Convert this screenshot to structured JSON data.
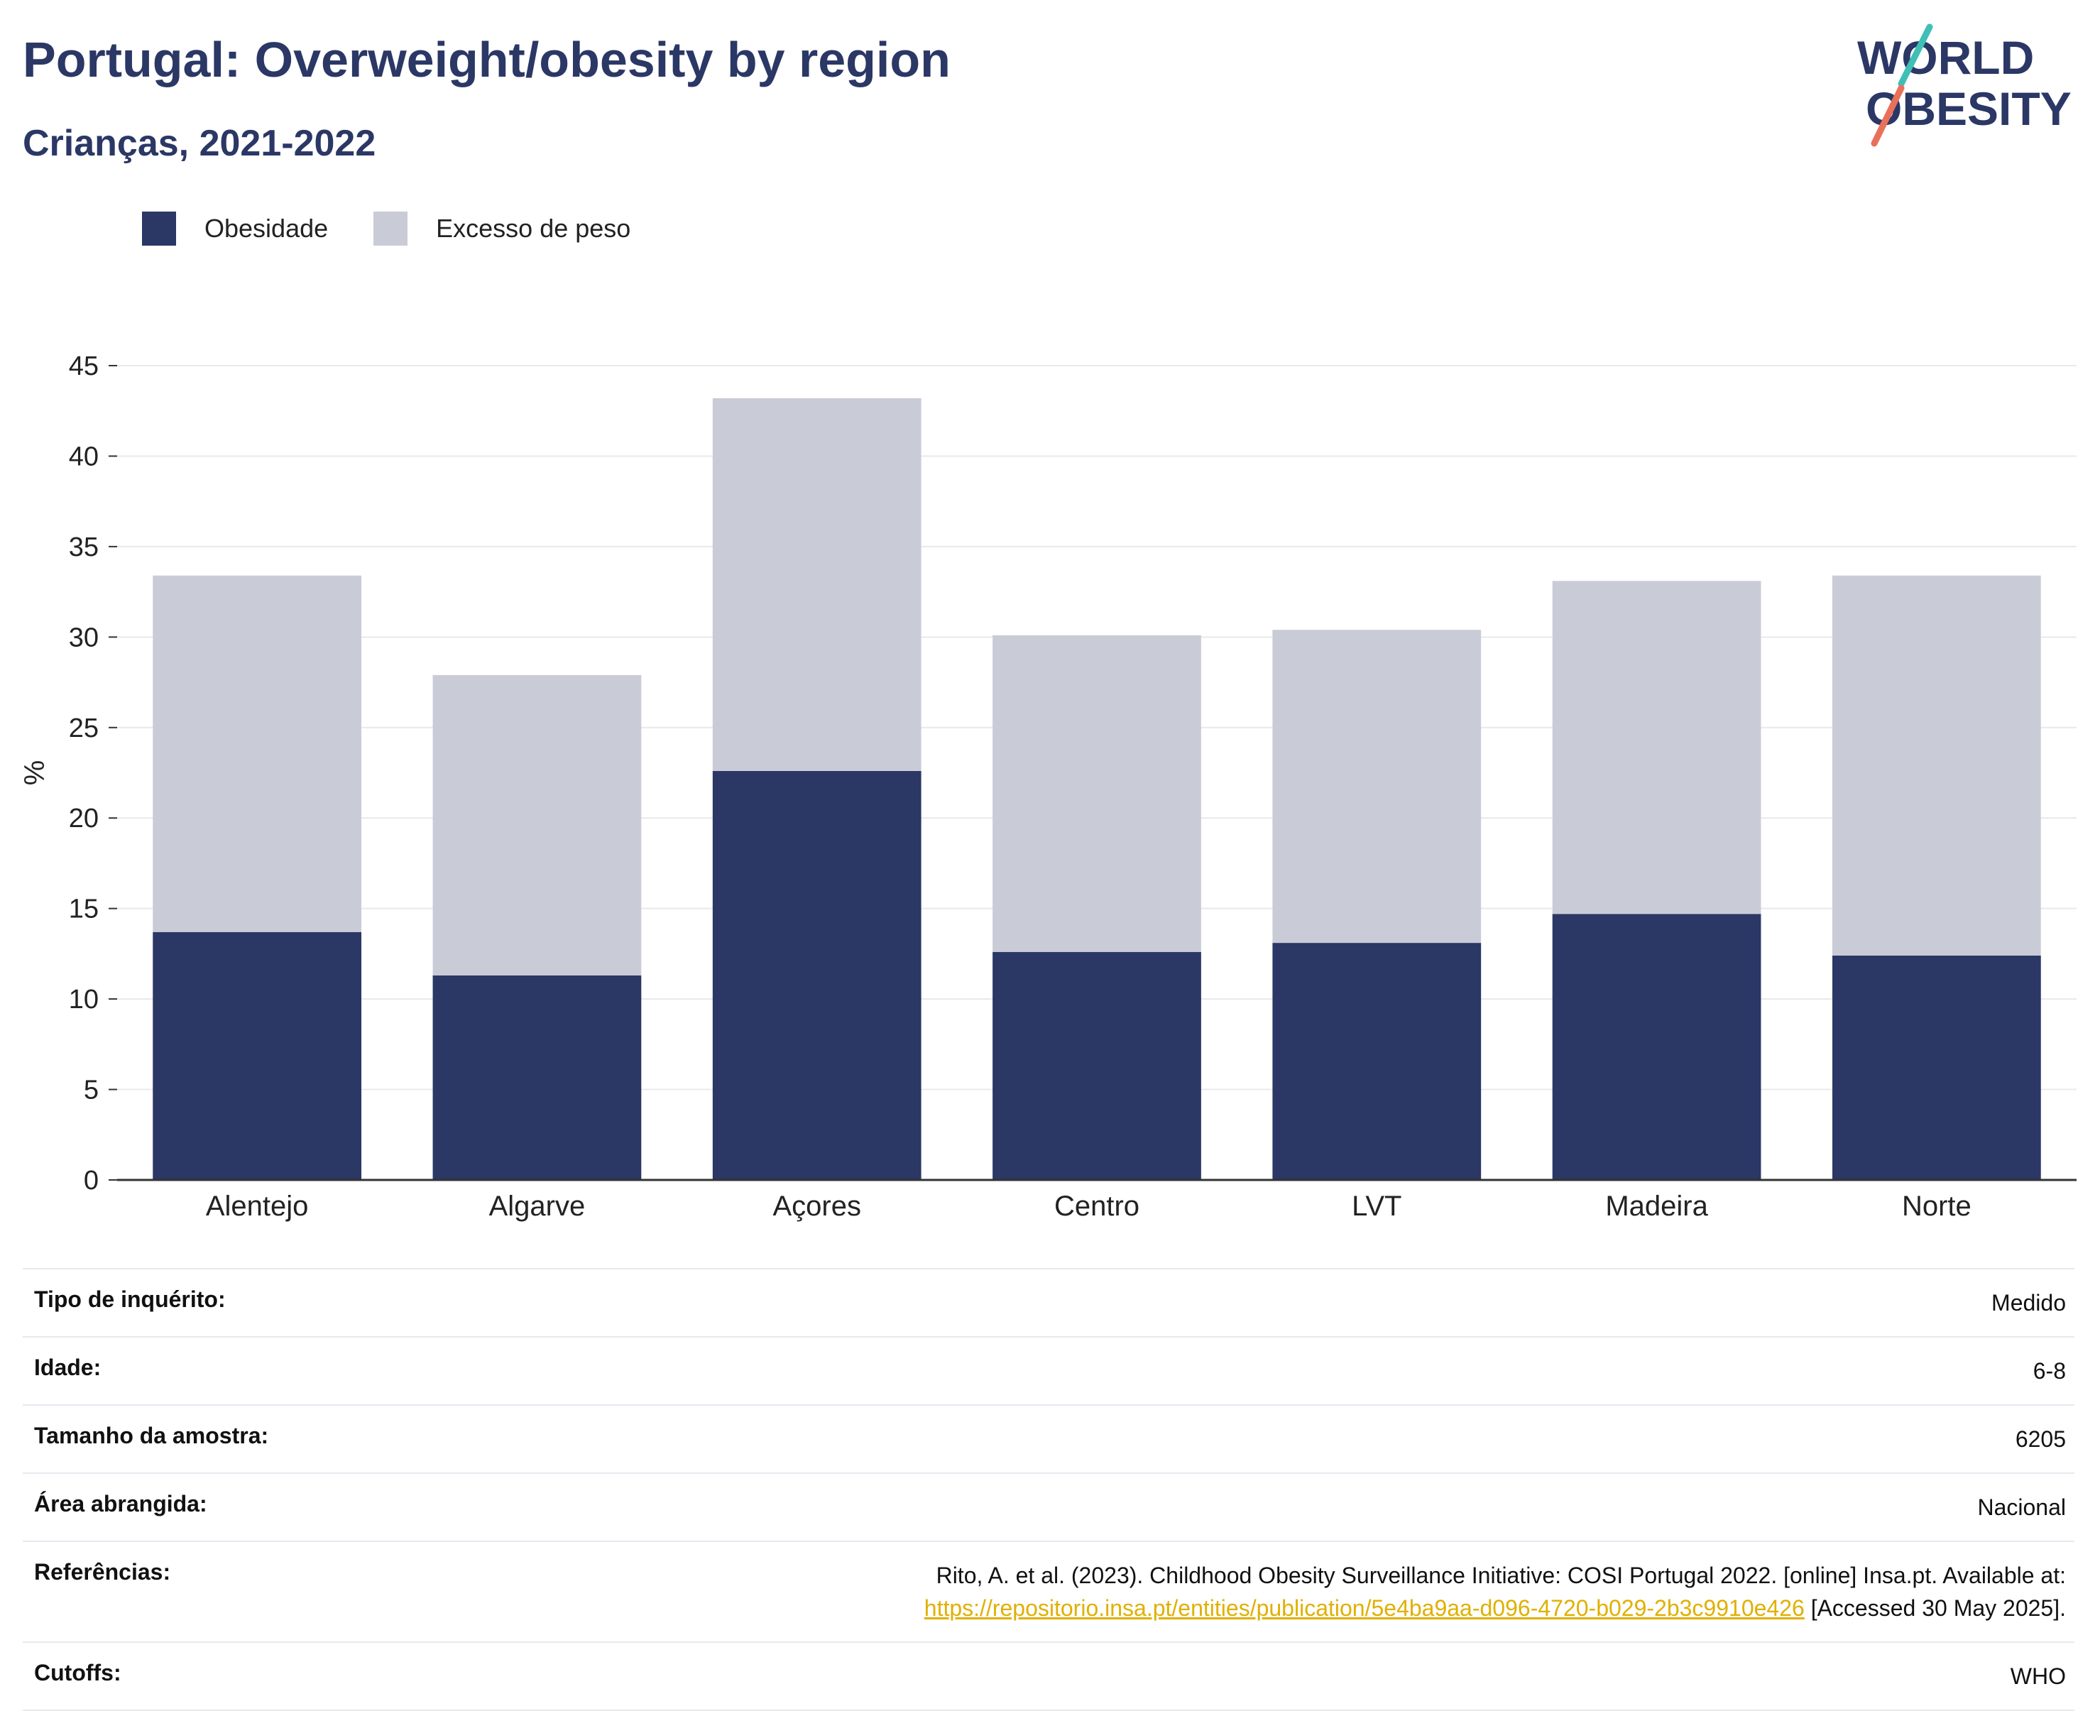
{
  "title": "Portugal: Overweight/obesity by region",
  "subtitle": "Crianças, 2021-2022",
  "logo": {
    "line1": "WORLD",
    "line2": "OBESITY"
  },
  "legend": [
    {
      "label": "Obesidade",
      "color": "#2b3765"
    },
    {
      "label": "Excesso de peso",
      "color": "#c9ccd7"
    }
  ],
  "chart_data": {
    "type": "bar",
    "stacked": true,
    "title": "",
    "xlabel": "",
    "ylabel": "%",
    "ylim": [
      0,
      45
    ],
    "yticks": [
      0,
      5,
      10,
      15,
      20,
      25,
      30,
      35,
      40,
      45
    ],
    "grid": true,
    "legend_position": "top-left",
    "categories": [
      "Alentejo",
      "Algarve",
      "Açores",
      "Centro",
      "LVT",
      "Madeira",
      "Norte"
    ],
    "series": [
      {
        "name": "Obesidade",
        "color": "#2b3765",
        "values": [
          13.7,
          11.3,
          22.6,
          12.6,
          13.1,
          14.7,
          12.4
        ]
      },
      {
        "name": "Excesso de peso",
        "color": "#c9ccd7",
        "values": [
          19.7,
          16.6,
          20.6,
          17.5,
          17.3,
          18.4,
          21.0
        ]
      }
    ]
  },
  "info": {
    "survey_type": {
      "label": "Tipo de inquérito:",
      "value": "Medido"
    },
    "age": {
      "label": "Idade:",
      "value": "6-8"
    },
    "sample_size": {
      "label": "Tamanho da amostra:",
      "value": "6205"
    },
    "area": {
      "label": "Área abrangida:",
      "value": "Nacional"
    },
    "references": {
      "label": "Referências:",
      "text1": "Rito, A. et al. (2023). Childhood Obesity Surveillance Initiative: COSI Portugal 2022. [online] Insa.pt. Available at:",
      "link": "https://repositorio.insa.pt/entities/publication/5e4ba9aa-d096-4720-b029-2b3c9910e426",
      "text2": " [Accessed 30 May 2025]."
    },
    "cutoffs": {
      "label": "Cutoffs:",
      "value": "WHO"
    }
  }
}
